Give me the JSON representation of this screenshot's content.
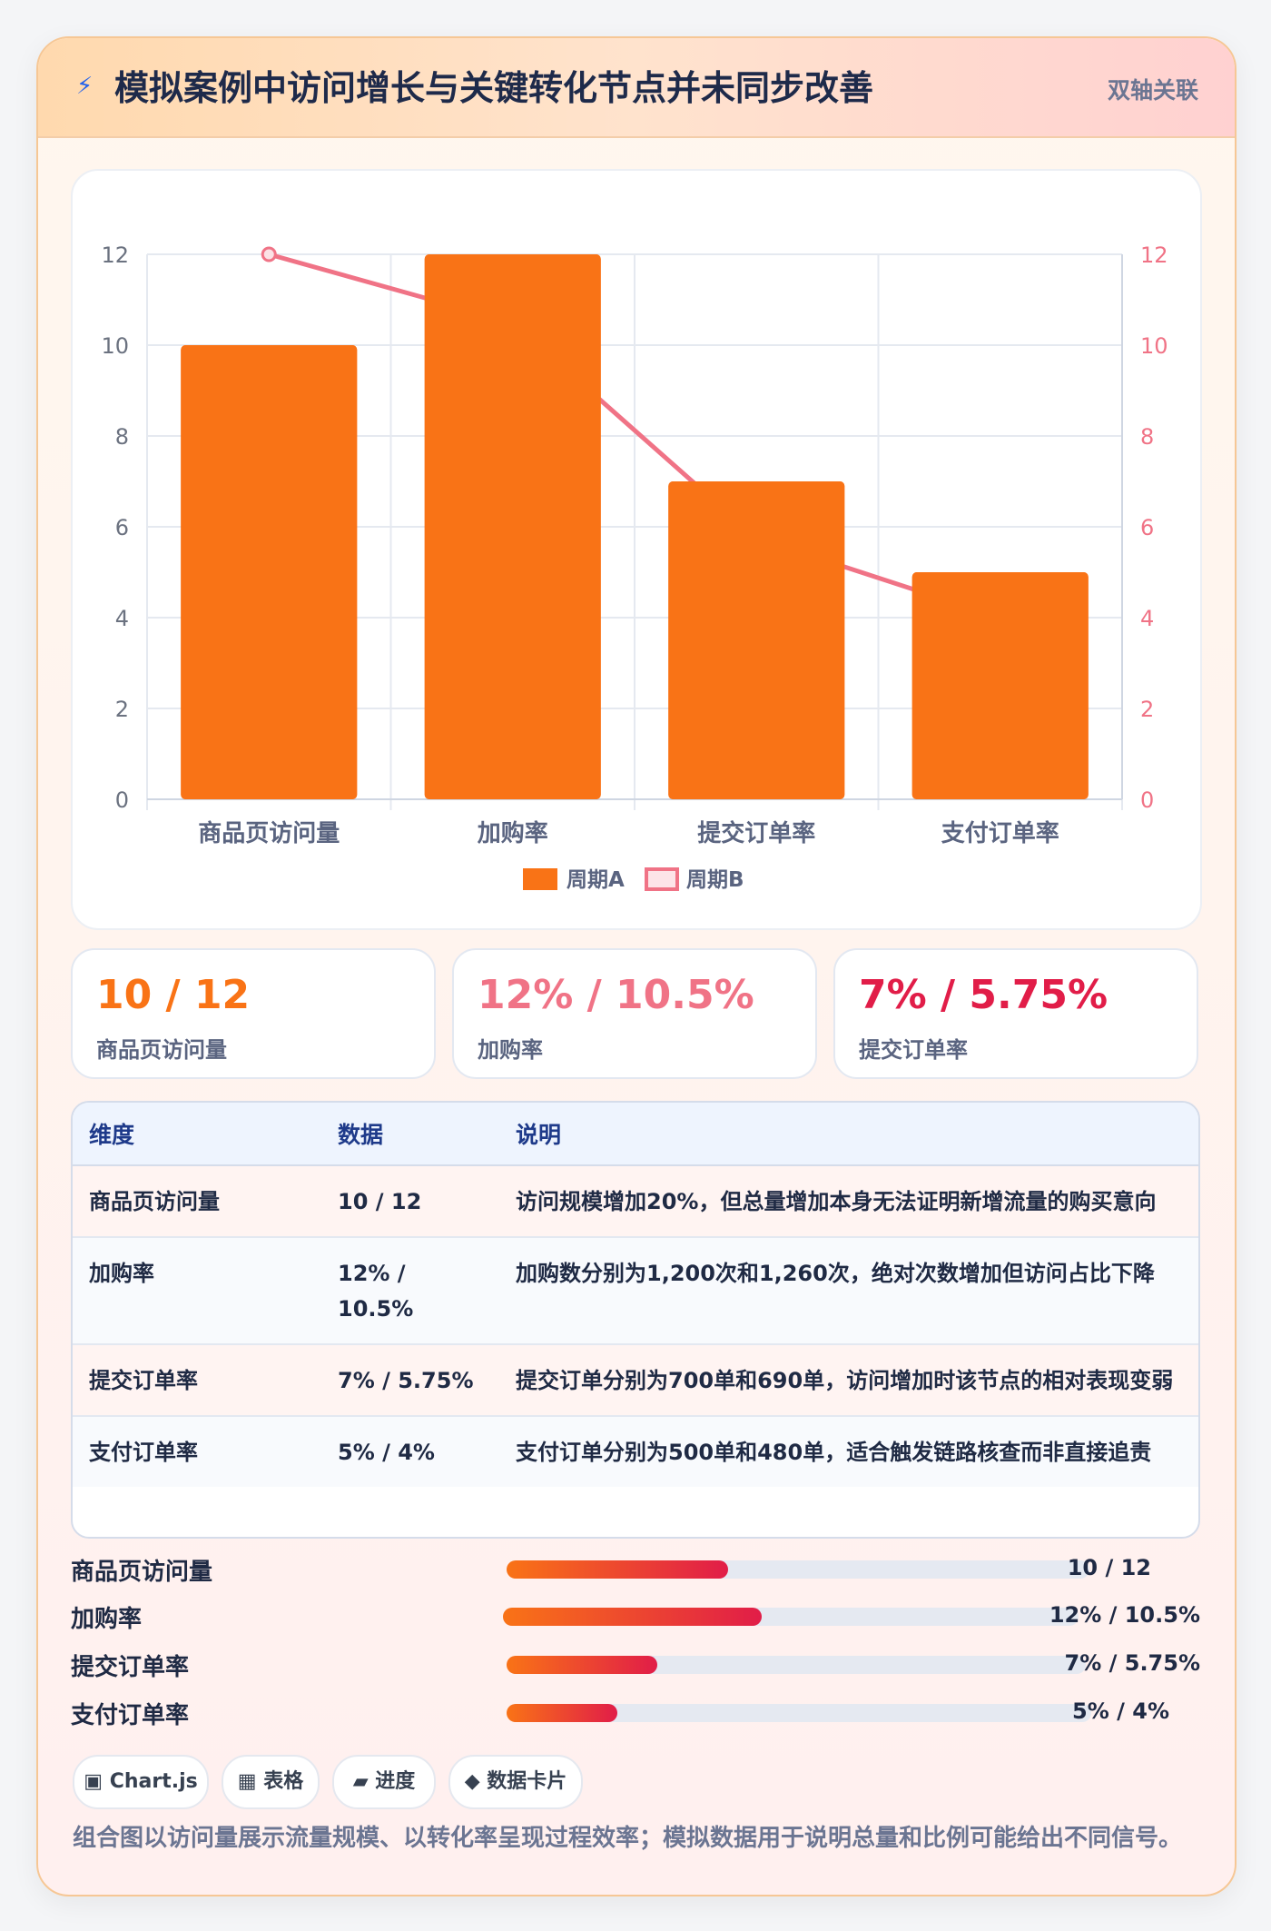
{
  "header": {
    "icon": "lightning-icon",
    "icon_glyph": "⚡",
    "title": "模拟案例中访问增长与关键转化节点并未同步改善",
    "tag": "双轴关联"
  },
  "chart_data": {
    "type": "bar",
    "categories": [
      "商品页访问量",
      "加购率",
      "提交订单率",
      "支付订单率"
    ],
    "series": [
      {
        "name": "周期A",
        "type": "bar",
        "axis": "left",
        "values": [
          10,
          12,
          7,
          5
        ],
        "color": "#f97316"
      },
      {
        "name": "周期B",
        "type": "line",
        "axis": "right",
        "values": [
          12,
          10.5,
          5.75,
          4
        ],
        "color": "#f07386"
      }
    ],
    "ylim": [
      0,
      12
    ],
    "y2lim": [
      0,
      12
    ],
    "yticks": [
      "0",
      "2",
      "4",
      "6",
      "8",
      "10",
      "12"
    ],
    "y2ticks": [
      "0",
      "2",
      "4",
      "6",
      "8",
      "10",
      "12"
    ],
    "title": "",
    "xlabel": "",
    "ylabel": "",
    "grid": true,
    "legend": "bottom"
  },
  "kpis": [
    {
      "value": "10 / 12",
      "label": "商品页访问量",
      "color": "#f97316"
    },
    {
      "value": "12% / 10.5%",
      "label": "加购率",
      "color": "#f07386"
    },
    {
      "value": "7% / 5.75%",
      "label": "提交订单率",
      "color": "#e11d48"
    }
  ],
  "table": {
    "headers": [
      "维度",
      "数据",
      "说明"
    ],
    "rows": [
      {
        "dim": "商品页访问量",
        "data": "10 / 12",
        "note": "访问规模增加20%，但总量增加本身无法证明新增流量的购买意向"
      },
      {
        "dim": "加购率",
        "data": "12% / 10.5%",
        "note": "加购数分别为1,200次和1,260次，绝对次数增加但访问占比下降"
      },
      {
        "dim": "提交订单率",
        "data": "7% / 5.75%",
        "note": "提交订单分别为700单和690单，访问增加时该节点的相对表现变弱"
      },
      {
        "dim": "支付订单率",
        "data": "5% / 4%",
        "note": "支付订单分别为500单和480单，适合触发链路核查而非直接追责"
      }
    ]
  },
  "progress": [
    {
      "label": "商品页访问量",
      "value_text": "10 / 12",
      "fraction": 0.38
    },
    {
      "label": "加购率",
      "value_text": "12% / 10.5%",
      "fraction": 0.45
    },
    {
      "label": "提交订单率",
      "value_text": "7% / 5.75%",
      "fraction": 0.26
    },
    {
      "label": "支付订单率",
      "value_text": "5% / 4%",
      "fraction": 0.19
    }
  ],
  "chips": [
    {
      "icon": "chart-icon",
      "glyph": "▣",
      "label": "Chart.js"
    },
    {
      "icon": "table-icon",
      "glyph": "▦",
      "label": "表格"
    },
    {
      "icon": "progress-icon",
      "glyph": "▰",
      "label": "进度"
    },
    {
      "icon": "diamond-icon",
      "glyph": "◆",
      "label": "数据卡片"
    }
  ],
  "footnote": "组合图以访问量展示流量规模、以转化率呈现过程效率；模拟数据用于说明总量和比例可能给出不同信号。"
}
